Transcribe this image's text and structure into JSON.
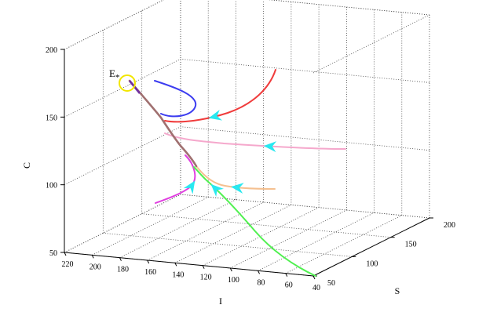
{
  "chart_data": {
    "type": "line",
    "projection": "3d",
    "title": "",
    "xlabel": "I",
    "ylabel": "S",
    "zlabel": "C",
    "xlim": [
      40,
      220
    ],
    "ylim": [
      50,
      200
    ],
    "zlim": [
      50,
      200
    ],
    "x_ticks": [
      220,
      200,
      180,
      160,
      140,
      120,
      100,
      80,
      60,
      40
    ],
    "y_ticks": [
      50,
      100,
      150,
      200
    ],
    "z_ticks": [
      50,
      100,
      150,
      200
    ],
    "grid": true,
    "equilibrium": {
      "label": "E",
      "subscript": "*",
      "marker": "circle",
      "marker_color": "#f2e600"
    },
    "series": [
      {
        "color": "#3c3cf0",
        "arrows": []
      },
      {
        "color": "#f03c3c",
        "arrows": [
          0.62
        ]
      },
      {
        "color": "#f5a8cc",
        "arrows": [
          0.42
        ]
      },
      {
        "color": "#f5c090",
        "arrows": [
          0.45
        ]
      },
      {
        "color": "#e040e0",
        "arrows": [
          0.55
        ]
      },
      {
        "color": "#50f050",
        "arrows": [
          0.82
        ]
      }
    ],
    "arrow_color": "#28e8f0",
    "trunk_color": "#a07070"
  }
}
